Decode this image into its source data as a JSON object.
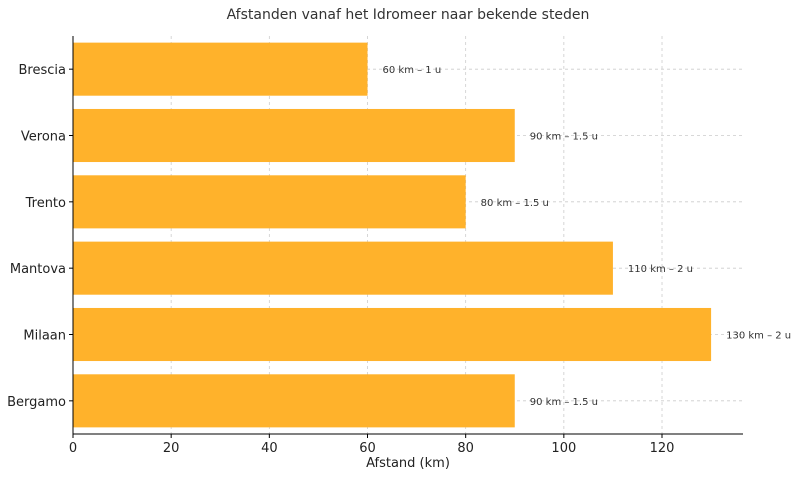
{
  "chart_data": {
    "type": "bar",
    "orientation": "horizontal",
    "title": "Afstanden vanaf het Idromeer naar bekende steden",
    "xlabel": "Afstand (km)",
    "ylabel": "",
    "categories": [
      "Brescia",
      "Verona",
      "Trento",
      "Mantova",
      "Milaan",
      "Bergamo"
    ],
    "values": [
      60,
      90,
      80,
      110,
      130,
      90
    ],
    "data_labels": [
      "60 km – 1 u",
      "90 km – 1.5 u",
      "80 km – 1.5 u",
      "110 km – 2 u",
      "130 km – 2 u",
      "90 km – 1.5 u"
    ],
    "xlim": [
      0,
      136.5
    ],
    "xticks": [
      0,
      20,
      40,
      60,
      80,
      100,
      120
    ],
    "grid": true,
    "bar_color": "#FFB22B",
    "legend": false
  }
}
